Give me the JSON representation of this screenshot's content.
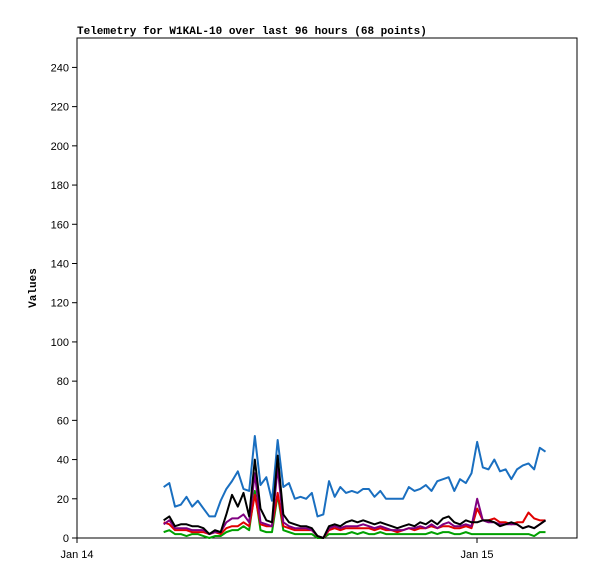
{
  "chart_data": {
    "type": "line",
    "title": "Telemetry for W1KAL-10 over last 96 hours (68 points)",
    "y_label": "Values",
    "xlim": [
      0,
      30
    ],
    "xticks": [
      {
        "value": 0,
        "label": "Jan 14"
      },
      {
        "value": 24,
        "label": "Jan 15"
      }
    ],
    "ylim": [
      0,
      255
    ],
    "yticks": [
      0,
      20,
      40,
      60,
      80,
      100,
      120,
      140,
      160,
      180,
      200,
      220,
      240
    ],
    "grid": false,
    "x": [
      5.2,
      5.54,
      5.88,
      6.23,
      6.57,
      6.91,
      7.25,
      7.59,
      7.94,
      8.28,
      8.62,
      8.96,
      9.3,
      9.65,
      9.99,
      10.33,
      10.67,
      11.01,
      11.36,
      11.7,
      12.04,
      12.38,
      12.72,
      13.07,
      13.41,
      13.75,
      14.09,
      14.43,
      14.78,
      15.12,
      15.46,
      15.8,
      16.14,
      16.49,
      16.83,
      17.17,
      17.51,
      17.85,
      18.2,
      18.54,
      18.88,
      19.22,
      19.56,
      19.91,
      20.25,
      20.59,
      20.93,
      21.27,
      21.62,
      21.96,
      22.3,
      22.64,
      22.98,
      23.33,
      23.67,
      24.01,
      24.35,
      24.69,
      25.04,
      25.38,
      25.72,
      26.06,
      26.4,
      26.75,
      27.09,
      27.43,
      27.77,
      28.11
    ],
    "series": [
      {
        "color": "#1a6fc0",
        "values": [
          26,
          28,
          16,
          17,
          21,
          16,
          19,
          15,
          11,
          11,
          19,
          25,
          29,
          34,
          25,
          24,
          52,
          27,
          31,
          19,
          50,
          26,
          28,
          20,
          21,
          20,
          23,
          11,
          12,
          29,
          21,
          26,
          23,
          24,
          23,
          25,
          25,
          21,
          24,
          20,
          20,
          20,
          20,
          26,
          24,
          25,
          27,
          24,
          29,
          30,
          31,
          24,
          30,
          28,
          33,
          49,
          36,
          35,
          40,
          34,
          35,
          30,
          35,
          37,
          38,
          35,
          46,
          44
        ]
      },
      {
        "color": "#00a000",
        "values": [
          3,
          4,
          2,
          2,
          1,
          2,
          2,
          1,
          0,
          1,
          1,
          3,
          4,
          4,
          6,
          4,
          24,
          4,
          3,
          3,
          22,
          4,
          3,
          2,
          2,
          2,
          2,
          0,
          0,
          2,
          2,
          2,
          2,
          3,
          2,
          3,
          2,
          2,
          3,
          2,
          2,
          2,
          2,
          2,
          2,
          2,
          2,
          3,
          2,
          3,
          3,
          2,
          2,
          3,
          2,
          2,
          2,
          2,
          2,
          2,
          2,
          2,
          2,
          2,
          2,
          1,
          3,
          3
        ]
      },
      {
        "color": "#e00000",
        "values": [
          8,
          7,
          4,
          4,
          4,
          3,
          3,
          3,
          2,
          3,
          2,
          5,
          6,
          6,
          8,
          6,
          22,
          7,
          6,
          6,
          23,
          6,
          5,
          4,
          4,
          4,
          4,
          1,
          0,
          4,
          5,
          4,
          5,
          5,
          5,
          5,
          5,
          4,
          5,
          4,
          4,
          3,
          4,
          5,
          4,
          5,
          5,
          6,
          5,
          6,
          6,
          5,
          5,
          6,
          5,
          15,
          9,
          9,
          10,
          8,
          8,
          7,
          8,
          8,
          13,
          10,
          9,
          9
        ]
      },
      {
        "color": "#800080",
        "values": [
          7,
          9,
          5,
          5,
          5,
          4,
          4,
          4,
          2,
          3,
          3,
          8,
          10,
          10,
          12,
          8,
          33,
          8,
          7,
          6,
          36,
          8,
          6,
          5,
          5,
          5,
          4,
          1,
          0,
          5,
          6,
          5,
          6,
          6,
          6,
          7,
          6,
          5,
          6,
          5,
          4,
          4,
          4,
          5,
          5,
          6,
          5,
          7,
          5,
          7,
          8,
          6,
          6,
          7,
          6,
          20,
          9,
          8,
          8,
          7,
          7,
          7,
          7,
          5,
          6,
          5,
          7,
          9
        ]
      },
      {
        "color": "#000000",
        "values": [
          9,
          11,
          6,
          7,
          7,
          6,
          6,
          5,
          2,
          4,
          3,
          12,
          22,
          16,
          23,
          11,
          40,
          15,
          9,
          8,
          42,
          12,
          8,
          7,
          6,
          6,
          5,
          1,
          0,
          6,
          7,
          6,
          8,
          9,
          8,
          9,
          8,
          7,
          8,
          7,
          6,
          5,
          6,
          7,
          6,
          8,
          7,
          9,
          7,
          10,
          11,
          8,
          7,
          9,
          8,
          8,
          9,
          9,
          8,
          6,
          7,
          8,
          7,
          5,
          6,
          5,
          7,
          9
        ]
      }
    ]
  }
}
